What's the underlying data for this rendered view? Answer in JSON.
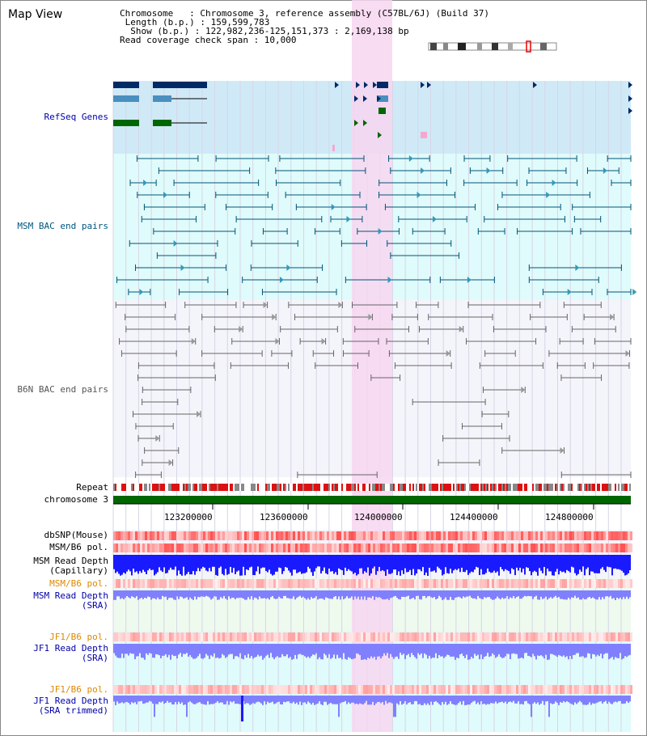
{
  "title": "Map View",
  "info": {
    "line1": "Chromosome   : Chromosome 3, reference assembly (C57BL/6J) (Build 37)",
    "line2": " Length (b.p.) : 159,599,783",
    "line3": "  Show (b.p.) : 122,982,236-125,151,373 : 2,169,138 bp",
    "line4": "Read coverage check span : 10,000"
  },
  "tracks": {
    "refseq": "RefSeq Genes",
    "msm_bac": "MSM BAC end pairs",
    "b6n_bac": "B6N BAC end pairs",
    "repeat": "Repeat",
    "chromosome": "chromosome 3",
    "dbsnp": "dbSNP(Mouse)",
    "msm_b6_pol": "MSM/B6 pol.",
    "msm_depth_cap": "MSM Read Depth\n(Capillary)",
    "msm_b6_pol2": "MSM/B6 pol.",
    "msm_depth_sra": "MSM Read Depth\n(SRA)",
    "jf1_b6_pol": "JF1/B6 pol.",
    "jf1_depth_sra": "JF1 Read Depth\n(SRA)",
    "jf1_b6_pol2": "JF1/B6 pol.",
    "jf1_depth_trim": "JF1 Read Depth\n(SRA trimmed)"
  },
  "axis_ticks": [
    "123200000",
    "123600000",
    "124000000",
    "124400000",
    "124800000"
  ],
  "colors": {
    "refseq_bg": "#cfe9f7",
    "msm_bg": "#e0fbfb",
    "highlight": "#f7d6f0",
    "gene_dark": "#002a66",
    "gene_light": "#4a8fbf",
    "gene_green": "#006600",
    "msm_line": "#005577",
    "b6n_line": "#666666",
    "chrom_bar": "#006600",
    "snp_red": "#ff6b6b",
    "depth_blue": "#1a1aff",
    "depth_light": "#8080ff"
  }
}
